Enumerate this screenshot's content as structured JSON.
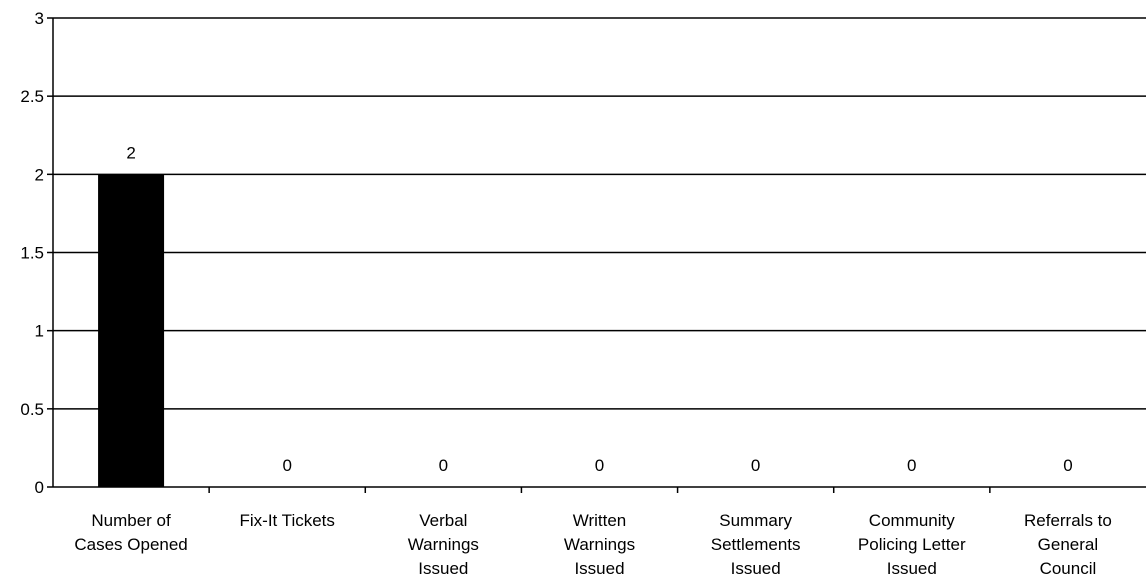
{
  "chart_data": {
    "type": "bar",
    "categories": [
      [
        "Number of",
        "Cases Opened"
      ],
      [
        "Fix-It Tickets"
      ],
      [
        "Verbal",
        "Warnings",
        "Issued"
      ],
      [
        "Written",
        "Warnings",
        "Issued"
      ],
      [
        "Summary",
        "Settlements",
        "Issued"
      ],
      [
        "Community",
        "Policing Letter",
        "Issued"
      ],
      [
        "Referrals to",
        "General",
        "Council"
      ]
    ],
    "values": [
      2,
      0,
      0,
      0,
      0,
      0,
      0
    ],
    "data_labels": [
      "2",
      "0",
      "0",
      "0",
      "0",
      "0",
      "0"
    ],
    "yticks": [
      "0",
      "0.5",
      "1",
      "1.5",
      "2",
      "2.5",
      "3"
    ],
    "ylim": [
      0,
      3
    ],
    "grid": true,
    "bar_color": "#000000"
  }
}
